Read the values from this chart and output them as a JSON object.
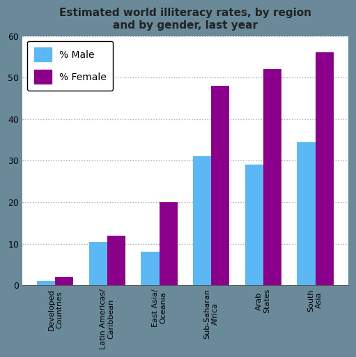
{
  "title": "Estimated world illiteracy rates, by region\nand by gender, last year",
  "categories": [
    "Developed\nCountries",
    "Latin Americas/\nCaribbean",
    "East Asia/\nOceania",
    "Sub-Saharan\nAfrica",
    "Arab\nStates",
    "South\nAsia"
  ],
  "male_values": [
    1,
    10.5,
    8,
    31,
    29,
    34.5
  ],
  "female_values": [
    2,
    12,
    20,
    48,
    52,
    56
  ],
  "male_color": "#5BB8F5",
  "female_color": "#8B008B",
  "bar_width": 0.35,
  "ylim": [
    0,
    60
  ],
  "yticks": [
    0,
    10,
    20,
    30,
    40,
    50,
    60
  ],
  "legend_male": "% Male",
  "legend_female": "% Female",
  "fig_bg_color": "#6A8A9A",
  "plot_bg_color": "#FFFFFF",
  "outer_bg_color": "#D8D8D8",
  "title_fontsize": 11,
  "tick_fontsize": 8,
  "legend_fontsize": 10
}
